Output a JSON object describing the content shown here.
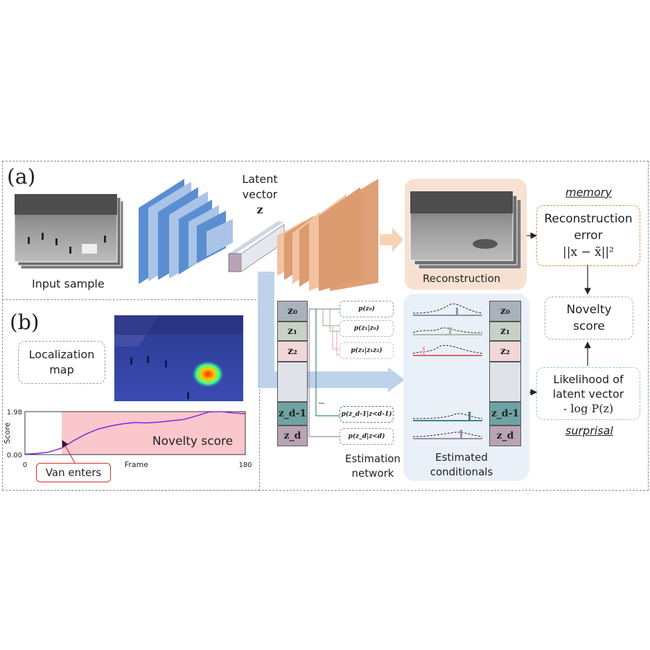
{
  "panel_a": {
    "label": "(a)",
    "input_label": "Input sample",
    "latent_title_1": "Latent",
    "latent_title_2": "vector",
    "latent_symbol": "z",
    "reconstruction_label": "Reconstruction",
    "memory_label": "memory",
    "surprisal_label": "surprisal",
    "recon_error_line1": "Reconstruction",
    "recon_error_line2": "error",
    "recon_error_formula": "||x − x̃||²",
    "novelty_line1": "Novelty",
    "novelty_line2": "score",
    "likelihood_line1": "Likelihood of",
    "likelihood_line2": "latent vector",
    "likelihood_formula": "- log P(z)",
    "estimation_line1": "Estimation",
    "estimation_line2": "network",
    "conditionals_line1": "Estimated",
    "conditionals_line2": "conditionals",
    "z_cells": [
      "z₀",
      "z₁",
      "z₂",
      "",
      "z_d-1",
      "z_d"
    ],
    "z_colors": [
      "#a9b1bd",
      "#c8d1c5",
      "#f1d7d7",
      "#dfe2e9",
      "#6fa3a3",
      "#b9a3b5"
    ],
    "cond_labels": [
      "p(z₀)",
      "p(z₁|z₀)",
      "p(z₂|z₁z₂)",
      "p(z_d-1|z<d-1)",
      "p(z_d|z<d)"
    ],
    "cond_colors": [
      "#8894a6",
      "#a9b8a5",
      "#e7b3b3",
      "#3f8282",
      "#a58aa5"
    ]
  },
  "panel_b": {
    "label": "(b)",
    "localization_line1": "Localization",
    "localization_line2": "map",
    "novelty_region_label": "Novelty score",
    "van_label": "Van enters"
  },
  "chart_data": {
    "type": "line",
    "xlabel": "Frame",
    "ylabel": "Score",
    "xlim": [
      0,
      180
    ],
    "ylim": [
      0.0,
      1.98
    ],
    "x_ticks": [
      "0",
      "180"
    ],
    "y_ticks": [
      "0.00",
      "1.98"
    ],
    "highlight_start_frame": 30,
    "highlight_label": "Novelty score",
    "series": [
      {
        "color": "#8a2be2",
        "x": [
          0,
          10,
          20,
          30,
          40,
          50,
          60,
          70,
          80,
          90,
          100,
          110,
          120,
          130,
          140,
          150,
          160,
          170,
          180
        ],
        "y": [
          0.02,
          0.05,
          0.12,
          0.3,
          0.65,
          0.95,
          1.18,
          1.32,
          1.42,
          1.48,
          1.46,
          1.5,
          1.56,
          1.62,
          1.78,
          1.96,
          1.98,
          1.92,
          1.88
        ]
      }
    ]
  }
}
